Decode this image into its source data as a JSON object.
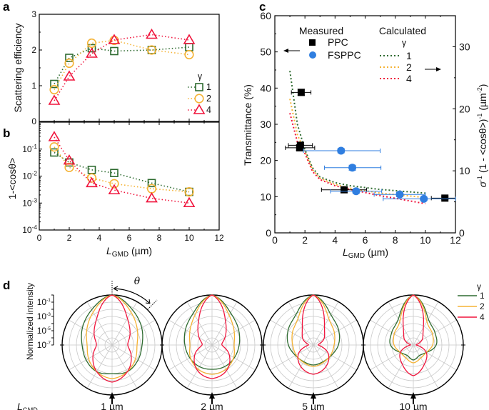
{
  "colors": {
    "gamma1": "#2e6b30",
    "gamma2": "#f5b335",
    "gamma4": "#f0143c",
    "ppc": "#000000",
    "fsppc": "#2f7ee0"
  },
  "panels": {
    "a": "a",
    "b": "b",
    "c": "c",
    "d": "d"
  },
  "chart_data": [
    {
      "id": "a",
      "type": "scatter-line",
      "ylabel": "Scattering efficiency",
      "xlabel": "",
      "xlim": [
        0,
        12
      ],
      "ylim": [
        0,
        3
      ],
      "yticks": [
        "0",
        "1",
        "2",
        "3"
      ],
      "legend_title": "γ",
      "legend_position": "bottom-right",
      "x": [
        1,
        2,
        3.5,
        5,
        7.5,
        10
      ],
      "series": [
        {
          "name": "1",
          "marker": "square",
          "values": [
            1.05,
            1.78,
            2.05,
            1.97,
            2.0,
            2.08
          ]
        },
        {
          "name": "2",
          "marker": "circle",
          "values": [
            0.89,
            1.63,
            2.19,
            2.27,
            2.0,
            1.87
          ]
        },
        {
          "name": "4",
          "marker": "triangle",
          "values": [
            0.58,
            1.26,
            1.9,
            2.28,
            2.43,
            2.28
          ]
        }
      ]
    },
    {
      "id": "b",
      "type": "scatter-line",
      "yscale": "log",
      "ylabel": "1-<cosθ>",
      "xlabel_main": "L",
      "xlabel_sub": "GMD",
      "xlabel_unit": " (µm)",
      "xlim": [
        0,
        12
      ],
      "ylim": [
        0.0001,
        1
      ],
      "xticks": [
        "0",
        "2",
        "4",
        "6",
        "8",
        "10",
        "12"
      ],
      "yticks": [
        {
          "base": "10",
          "exp": "-1"
        },
        {
          "base": "10",
          "exp": "-2"
        },
        {
          "base": "10",
          "exp": "-3"
        },
        {
          "base": "10",
          "exp": "-4"
        }
      ],
      "x": [
        1,
        2,
        3.5,
        5,
        7.5,
        10
      ],
      "series": [
        {
          "name": "1",
          "marker": "square",
          "values": [
            0.075,
            0.032,
            0.017,
            0.013,
            0.0055,
            0.0026
          ]
        },
        {
          "name": "2",
          "marker": "circle",
          "values": [
            0.12,
            0.021,
            0.0085,
            0.0052,
            0.0034,
            0.0026
          ]
        },
        {
          "name": "4",
          "marker": "triangle",
          "values": [
            0.28,
            0.038,
            0.0055,
            0.003,
            0.0015,
            0.001
          ]
        }
      ]
    },
    {
      "id": "c",
      "type": "scatter-line",
      "dual_axis": true,
      "ylabel_left": "Transmittance (%)",
      "ylabel_right_sigma": "σ",
      "ylabel_right_sup1": "-1",
      "ylabel_right_mid": " (1 - <cosθ>)",
      "ylabel_right_sup2": "-1",
      "ylabel_right_unit": " (µm",
      "ylabel_right_sup3": "-2",
      "ylabel_right_close": ")",
      "xlabel_main": "L",
      "xlabel_sub": "GMD",
      "xlabel_unit": " (µm)",
      "xlim": [
        0,
        12
      ],
      "ylim_left": [
        0,
        60
      ],
      "ylim_right": [
        0,
        35
      ],
      "xticks": [
        "0",
        "2",
        "4",
        "6",
        "8",
        "10",
        "12"
      ],
      "yticks_left": [
        "0",
        "10",
        "20",
        "30",
        "40",
        "50",
        "60"
      ],
      "yticks_right": [
        "0",
        "10",
        "20",
        "30"
      ],
      "legend_measured_title": "Measured",
      "legend_calculated_title": "Calculated",
      "legend_gamma": "γ",
      "measured": [
        {
          "name": "PPC",
          "marker": "square",
          "points": [
            {
              "x": 1.75,
              "y": 38.8,
              "xerr": [
                1.1,
                2.4
              ],
              "yerr": [
                38.0,
                39.7
              ]
            },
            {
              "x": 1.7,
              "y": 24.2,
              "xerr": [
                0.9,
                2.5
              ],
              "yerr": [
                23.5,
                25.0
              ]
            },
            {
              "x": 1.65,
              "y": 23.5,
              "xerr": [
                0.7,
                2.65
              ],
              "yerr": [
                22.8,
                24.3
              ]
            },
            {
              "x": 4.6,
              "y": 11.9,
              "xerr": [
                3.1,
                6.1
              ],
              "yerr": [
                11.2,
                12.6
              ]
            },
            {
              "x": 11.3,
              "y": 9.6,
              "xerr": [
                10.4,
                12.0
              ],
              "yerr": [
                9.2,
                10.0
              ]
            }
          ]
        },
        {
          "name": "FSPPC",
          "marker": "circle",
          "points": [
            {
              "x": 4.4,
              "y": 22.7,
              "xerr": [
                1.9,
                7.0
              ],
              "yerr": [
                22.1,
                23.3
              ]
            },
            {
              "x": 5.15,
              "y": 18.0,
              "xerr": [
                3.3,
                7.05
              ],
              "yerr": [
                17.3,
                18.7
              ]
            },
            {
              "x": 5.4,
              "y": 11.5,
              "xerr": [
                3.7,
                7.1
              ],
              "yerr": [
                10.9,
                12.1
              ]
            },
            {
              "x": 8.3,
              "y": 10.6,
              "xerr": [
                6.6,
                10.0
              ],
              "yerr": [
                10.0,
                11.2
              ]
            },
            {
              "x": 9.9,
              "y": 9.4,
              "xerr": [
                7.2,
                12.0
              ],
              "yerr": [
                8.9,
                9.9
              ]
            }
          ]
        }
      ],
      "calculated_x": [
        1,
        1.5,
        2,
        2.5,
        3,
        4,
        5,
        7,
        10
      ],
      "calculated": [
        {
          "name": "1",
          "values_right_axis": [
            26.1,
            17.5,
            13.4,
            10.5,
            9.0,
            8.1,
            7.6,
            7.0,
            6.4
          ]
        },
        {
          "name": "2",
          "values_right_axis": [
            21.6,
            15.8,
            13.1,
            10.2,
            8.8,
            7.8,
            7.2,
            6.4,
            5.7
          ]
        },
        {
          "name": "4",
          "values_right_axis": [
            19.3,
            14.6,
            12.8,
            9.9,
            8.6,
            7.6,
            7.0,
            6.0,
            4.7
          ]
        }
      ]
    },
    {
      "id": "d",
      "type": "polar",
      "radial_label": "Normalized intensity",
      "radial_scale": "log",
      "radial_range_log10": [
        -7,
        0
      ],
      "radial_ticks": [
        {
          "base": "10",
          "exp": "-1"
        },
        {
          "base": "10",
          "exp": "-3"
        },
        {
          "base": "10",
          "exp": "-5"
        },
        {
          "base": "10",
          "exp": "-7"
        }
      ],
      "angle_label": "θ",
      "row_label_main": "L",
      "row_label_sub": "GMD",
      "legend_title": "γ",
      "legend_position": "right",
      "angles_deg": [
        0,
        30,
        60,
        90,
        120,
        150,
        180
      ],
      "plots": [
        {
          "label": "1 µm",
          "series": [
            {
              "name": "1",
              "log10_intensity": [
                0,
                -1.3,
                -2.2,
                -2.8,
                -2.8,
                -2.7,
                -3.0
              ]
            },
            {
              "name": "2",
              "log10_intensity": [
                0,
                -1.7,
                -2.9,
                -3.5,
                -3.2,
                -2.7,
                -2.3
              ]
            },
            {
              "name": "4",
              "log10_intensity": [
                0,
                -2.7,
                -4.1,
                -4.8,
                -3.9,
                -2.7,
                -1.8
              ]
            }
          ]
        },
        {
          "label": "2 µm",
          "series": [
            {
              "name": "1",
              "log10_intensity": [
                0,
                -1.8,
                -2.7,
                -3.2,
                -3.4,
                -3.5,
                -3.6
              ]
            },
            {
              "name": "2",
              "log10_intensity": [
                0,
                -2.2,
                -3.4,
                -3.9,
                -3.5,
                -3.1,
                -2.9
              ]
            },
            {
              "name": "4",
              "log10_intensity": [
                0,
                -3.2,
                -4.9,
                -5.6,
                -4.2,
                -2.9,
                -2.3
              ]
            }
          ]
        },
        {
          "label": "5 µm",
          "series": [
            {
              "name": "1",
              "log10_intensity": [
                0,
                -2.1,
                -2.9,
                -3.5,
                -4.1,
                -4.3,
                -4.2
              ]
            },
            {
              "name": "2",
              "log10_intensity": [
                0,
                -2.7,
                -3.6,
                -4.1,
                -4.2,
                -4.2,
                -4.0
              ]
            },
            {
              "name": "4",
              "log10_intensity": [
                0,
                -3.9,
                -5.3,
                -6.3,
                -4.6,
                -3.5,
                -2.9
              ]
            }
          ]
        },
        {
          "label": "10 µm",
          "series": [
            {
              "name": "1",
              "log10_intensity": [
                0,
                -2.8,
                -3.5,
                -3.8,
                -4.9,
                -5.3,
                -4.9
              ]
            },
            {
              "name": "2",
              "log10_intensity": [
                0,
                -3.2,
                -3.9,
                -4.3,
                -4.9,
                -4.9,
                -4.5
              ]
            },
            {
              "name": "4",
              "log10_intensity": [
                0,
                -4.2,
                -5.6,
                -6.6,
                -4.9,
                -3.9,
                -2.7
              ]
            }
          ]
        }
      ]
    }
  ]
}
